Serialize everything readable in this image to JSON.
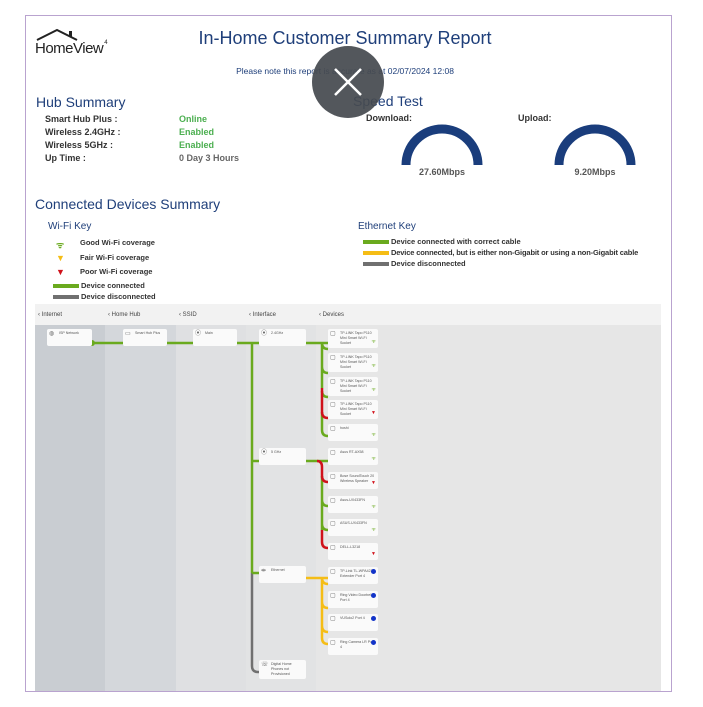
{
  "header": {
    "logo": "HomeView",
    "logo_sup": "4",
    "title": "In-Home Customer Summary Report",
    "note": "Please note this report is accurate as at 02/07/2024 12:08"
  },
  "hub": {
    "title": "Hub Summary",
    "rows": [
      {
        "label": "Smart Hub Plus :",
        "value": "Online",
        "color": "#4caf50"
      },
      {
        "label": "Wireless 2.4GHz :",
        "value": "Enabled",
        "color": "#4caf50"
      },
      {
        "label": "Wireless 5GHz :",
        "value": "Enabled",
        "color": "#4caf50"
      },
      {
        "label": "Up Time :",
        "value": "0 Day 3 Hours",
        "color": "#666666"
      }
    ]
  },
  "speed": {
    "title": "Speed Test",
    "download_label": "Download:",
    "download": "27.60Mbps",
    "upload_label": "Upload:",
    "upload": "9.20Mbps"
  },
  "devices_summary": {
    "title": "Connected Devices Summary",
    "wifi_key": {
      "title": "Wi-Fi Key",
      "items": [
        "Good Wi-Fi coverage",
        "Fair Wi-Fi coverage",
        "Poor Wi-Fi coverage",
        "Device connected",
        "Device disconnected"
      ]
    },
    "eth_key": {
      "title": "Ethernet Key",
      "items": [
        "Device connected with correct cable",
        "Device connected, but is either non-Gigabit or using a non-Gigabit cable",
        "Device disconnected"
      ]
    }
  },
  "colors": {
    "green": "#6aaa1e",
    "yellow": "#f5bd16",
    "red": "#d0121b",
    "gray": "#707070",
    "blue": "#1f3f7a"
  },
  "diagram": {
    "columns": [
      "Internet",
      "Home Hub",
      "SSID",
      "Interface",
      "Devices"
    ],
    "isp": "ISP Network",
    "hub": "Smart Hub Plus",
    "ssid": "Main",
    "interfaces": [
      "2.4GHz",
      "5 GHz",
      "Ethernet",
      "Digital Home Phones not Provisioned"
    ],
    "devices": [
      {
        "name": "TP-LINK Tapo P110 Mini Smart Wi-Fi Socket",
        "signal": "good"
      },
      {
        "name": "TP-LINK Tapo P110 Mini Smart Wi-Fi Socket",
        "signal": "good"
      },
      {
        "name": "TP-LINK Tapo P110 Mini Smart Wi-Fi Socket",
        "signal": "good"
      },
      {
        "name": "TP-LINK Tapo P110 Mini Smart Wi-Fi Socket",
        "signal": "poor"
      },
      {
        "name": "hoshi",
        "signal": "good"
      },
      {
        "name": "Asus RT-AX58",
        "signal": "good"
      },
      {
        "name": "Bose SoundTouch 20 Wireless Speaker",
        "signal": "poor"
      },
      {
        "name": "Asus-UX433FN",
        "signal": "good"
      },
      {
        "name": "ASUS-UX433FN",
        "signal": "good"
      },
      {
        "name": "DELL-L3218",
        "signal": "poor"
      },
      {
        "name": "TP-Link TL-WPA4220 Extender Port 4",
        "signal": "eth"
      },
      {
        "name": "Ring Video Doorbell Port 4",
        "signal": "eth"
      },
      {
        "name": "VUSolo2 Port 4",
        "signal": "eth"
      },
      {
        "name": "Ring Camera LR Port 4",
        "signal": "eth"
      }
    ]
  }
}
